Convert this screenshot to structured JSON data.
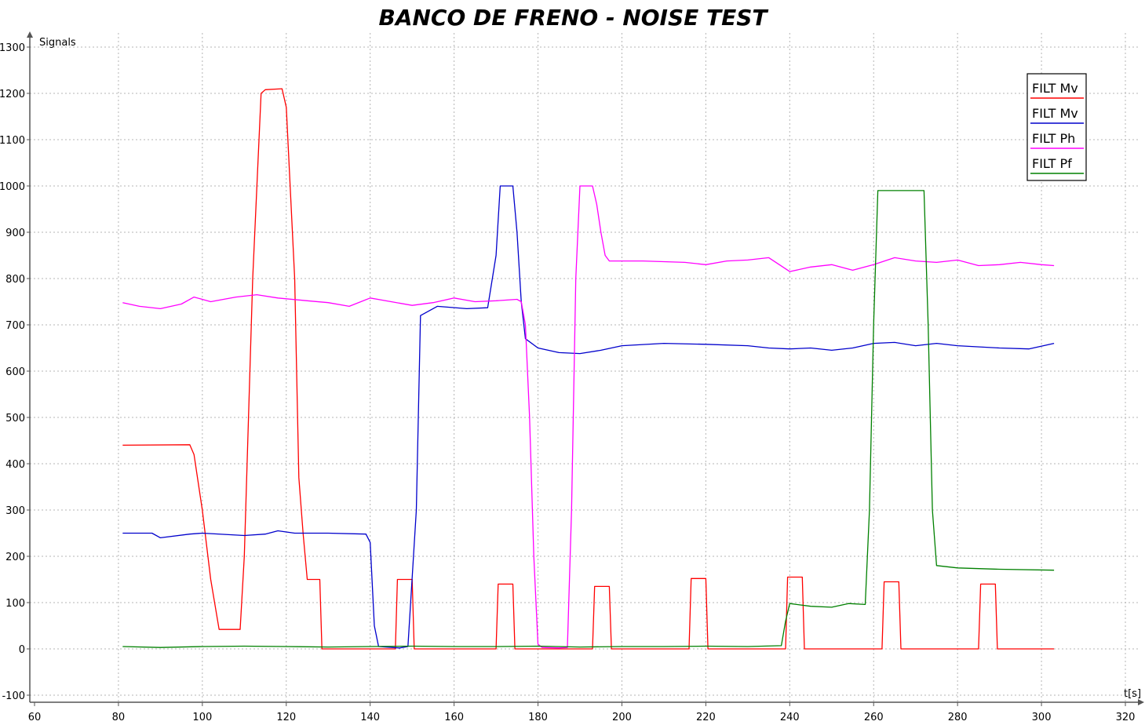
{
  "chart_data": {
    "type": "line",
    "title": "BANCO DE FRENO - NOISE TEST",
    "xlabel": "t[s]",
    "ylabel": "Signals",
    "xlim": [
      60,
      320
    ],
    "ylim": [
      -100,
      1300
    ],
    "xticks": [
      60,
      80,
      100,
      120,
      140,
      160,
      180,
      200,
      220,
      240,
      260,
      280,
      300,
      320
    ],
    "yticks": [
      -100,
      0,
      100,
      200,
      300,
      400,
      500,
      600,
      700,
      800,
      900,
      1000,
      1100,
      1200,
      1300
    ],
    "grid": true,
    "legend_position": "top-right",
    "series": [
      {
        "name": "FILT Mv",
        "color": "#ff0000",
        "points": [
          [
            81,
            440
          ],
          [
            97,
            441
          ],
          [
            98,
            420
          ],
          [
            100,
            300
          ],
          [
            102,
            150
          ],
          [
            104,
            42
          ],
          [
            109,
            42
          ],
          [
            110,
            200
          ],
          [
            112,
            800
          ],
          [
            114,
            1200
          ],
          [
            115,
            1208
          ],
          [
            119,
            1210
          ],
          [
            120,
            1170
          ],
          [
            122,
            800
          ],
          [
            123,
            370
          ],
          [
            124,
            250
          ],
          [
            125,
            150
          ],
          [
            128,
            150
          ],
          [
            128.5,
            0
          ],
          [
            146,
            0
          ],
          [
            146.5,
            150
          ],
          [
            150,
            150
          ],
          [
            150.5,
            0
          ],
          [
            170,
            0
          ],
          [
            170.5,
            140
          ],
          [
            174,
            140
          ],
          [
            174.5,
            0
          ],
          [
            193,
            0
          ],
          [
            193.5,
            135
          ],
          [
            197,
            135
          ],
          [
            197.5,
            0
          ],
          [
            216,
            0
          ],
          [
            216.5,
            152
          ],
          [
            220,
            152
          ],
          [
            220.5,
            0
          ],
          [
            239,
            0
          ],
          [
            239.5,
            155
          ],
          [
            243,
            155
          ],
          [
            243.5,
            0
          ],
          [
            262,
            0
          ],
          [
            262.5,
            145
          ],
          [
            266,
            145
          ],
          [
            266.5,
            0
          ],
          [
            285,
            0
          ],
          [
            285.5,
            140
          ],
          [
            289,
            140
          ],
          [
            289.5,
            0
          ],
          [
            303,
            0
          ]
        ]
      },
      {
        "name": "FILT Mv",
        "color": "#0000cc",
        "points": [
          [
            81,
            250
          ],
          [
            88,
            250
          ],
          [
            90,
            240
          ],
          [
            97,
            248
          ],
          [
            100,
            250
          ],
          [
            110,
            245
          ],
          [
            115,
            248
          ],
          [
            118,
            255
          ],
          [
            122,
            250
          ],
          [
            130,
            250
          ],
          [
            139,
            248
          ],
          [
            140,
            230
          ],
          [
            141,
            50
          ],
          [
            142,
            5
          ],
          [
            147,
            2
          ],
          [
            149,
            5
          ],
          [
            151,
            300
          ],
          [
            152,
            720
          ],
          [
            156,
            740
          ],
          [
            163,
            735
          ],
          [
            168,
            737
          ],
          [
            170,
            850
          ],
          [
            171,
            1000
          ],
          [
            174,
            1000
          ],
          [
            175,
            900
          ],
          [
            176,
            750
          ],
          [
            177,
            670
          ],
          [
            180,
            650
          ],
          [
            185,
            640
          ],
          [
            190,
            638
          ],
          [
            195,
            645
          ],
          [
            200,
            655
          ],
          [
            210,
            660
          ],
          [
            220,
            658
          ],
          [
            230,
            655
          ],
          [
            235,
            650
          ],
          [
            240,
            648
          ],
          [
            245,
            650
          ],
          [
            250,
            645
          ],
          [
            255,
            650
          ],
          [
            260,
            660
          ],
          [
            265,
            662
          ],
          [
            270,
            655
          ],
          [
            275,
            660
          ],
          [
            280,
            655
          ],
          [
            290,
            650
          ],
          [
            297,
            648
          ],
          [
            303,
            660
          ]
        ]
      },
      {
        "name": "FILT Ph",
        "color": "#ff00ff",
        "points": [
          [
            81,
            748
          ],
          [
            85,
            740
          ],
          [
            90,
            735
          ],
          [
            95,
            745
          ],
          [
            98,
            760
          ],
          [
            102,
            750
          ],
          [
            108,
            760
          ],
          [
            113,
            765
          ],
          [
            118,
            758
          ],
          [
            125,
            752
          ],
          [
            130,
            748
          ],
          [
            135,
            740
          ],
          [
            140,
            758
          ],
          [
            145,
            750
          ],
          [
            150,
            742
          ],
          [
            155,
            748
          ],
          [
            160,
            758
          ],
          [
            165,
            750
          ],
          [
            170,
            752
          ],
          [
            175,
            755
          ],
          [
            176,
            750
          ],
          [
            177,
            700
          ],
          [
            178,
            500
          ],
          [
            179,
            200
          ],
          [
            180,
            10
          ],
          [
            181,
            3
          ],
          [
            185,
            2
          ],
          [
            187,
            3
          ],
          [
            188,
            300
          ],
          [
            189,
            800
          ],
          [
            190,
            1000
          ],
          [
            193,
            1000
          ],
          [
            194,
            960
          ],
          [
            195,
            900
          ],
          [
            196,
            850
          ],
          [
            197,
            838
          ],
          [
            205,
            838
          ],
          [
            215,
            835
          ],
          [
            220,
            830
          ],
          [
            225,
            838
          ],
          [
            230,
            840
          ],
          [
            235,
            845
          ],
          [
            240,
            815
          ],
          [
            245,
            825
          ],
          [
            250,
            830
          ],
          [
            255,
            818
          ],
          [
            260,
            830
          ],
          [
            265,
            845
          ],
          [
            270,
            838
          ],
          [
            275,
            835
          ],
          [
            280,
            840
          ],
          [
            285,
            828
          ],
          [
            290,
            830
          ],
          [
            295,
            835
          ],
          [
            300,
            830
          ],
          [
            303,
            828
          ]
        ]
      },
      {
        "name": "FILT Pf",
        "color": "#008000",
        "points": [
          [
            81,
            5
          ],
          [
            90,
            3
          ],
          [
            100,
            5
          ],
          [
            110,
            6
          ],
          [
            120,
            5
          ],
          [
            130,
            4
          ],
          [
            140,
            5
          ],
          [
            150,
            6
          ],
          [
            160,
            5
          ],
          [
            170,
            5
          ],
          [
            180,
            6
          ],
          [
            190,
            4
          ],
          [
            200,
            5
          ],
          [
            210,
            5
          ],
          [
            220,
            6
          ],
          [
            230,
            5
          ],
          [
            238,
            7
          ],
          [
            239,
            60
          ],
          [
            240,
            98
          ],
          [
            245,
            92
          ],
          [
            250,
            90
          ],
          [
            254,
            98
          ],
          [
            258,
            96
          ],
          [
            259,
            300
          ],
          [
            260,
            700
          ],
          [
            261,
            990
          ],
          [
            265,
            990
          ],
          [
            270,
            990
          ],
          [
            272,
            990
          ],
          [
            273,
            700
          ],
          [
            274,
            300
          ],
          [
            275,
            180
          ],
          [
            280,
            175
          ],
          [
            290,
            172
          ],
          [
            303,
            170
          ]
        ]
      }
    ]
  }
}
